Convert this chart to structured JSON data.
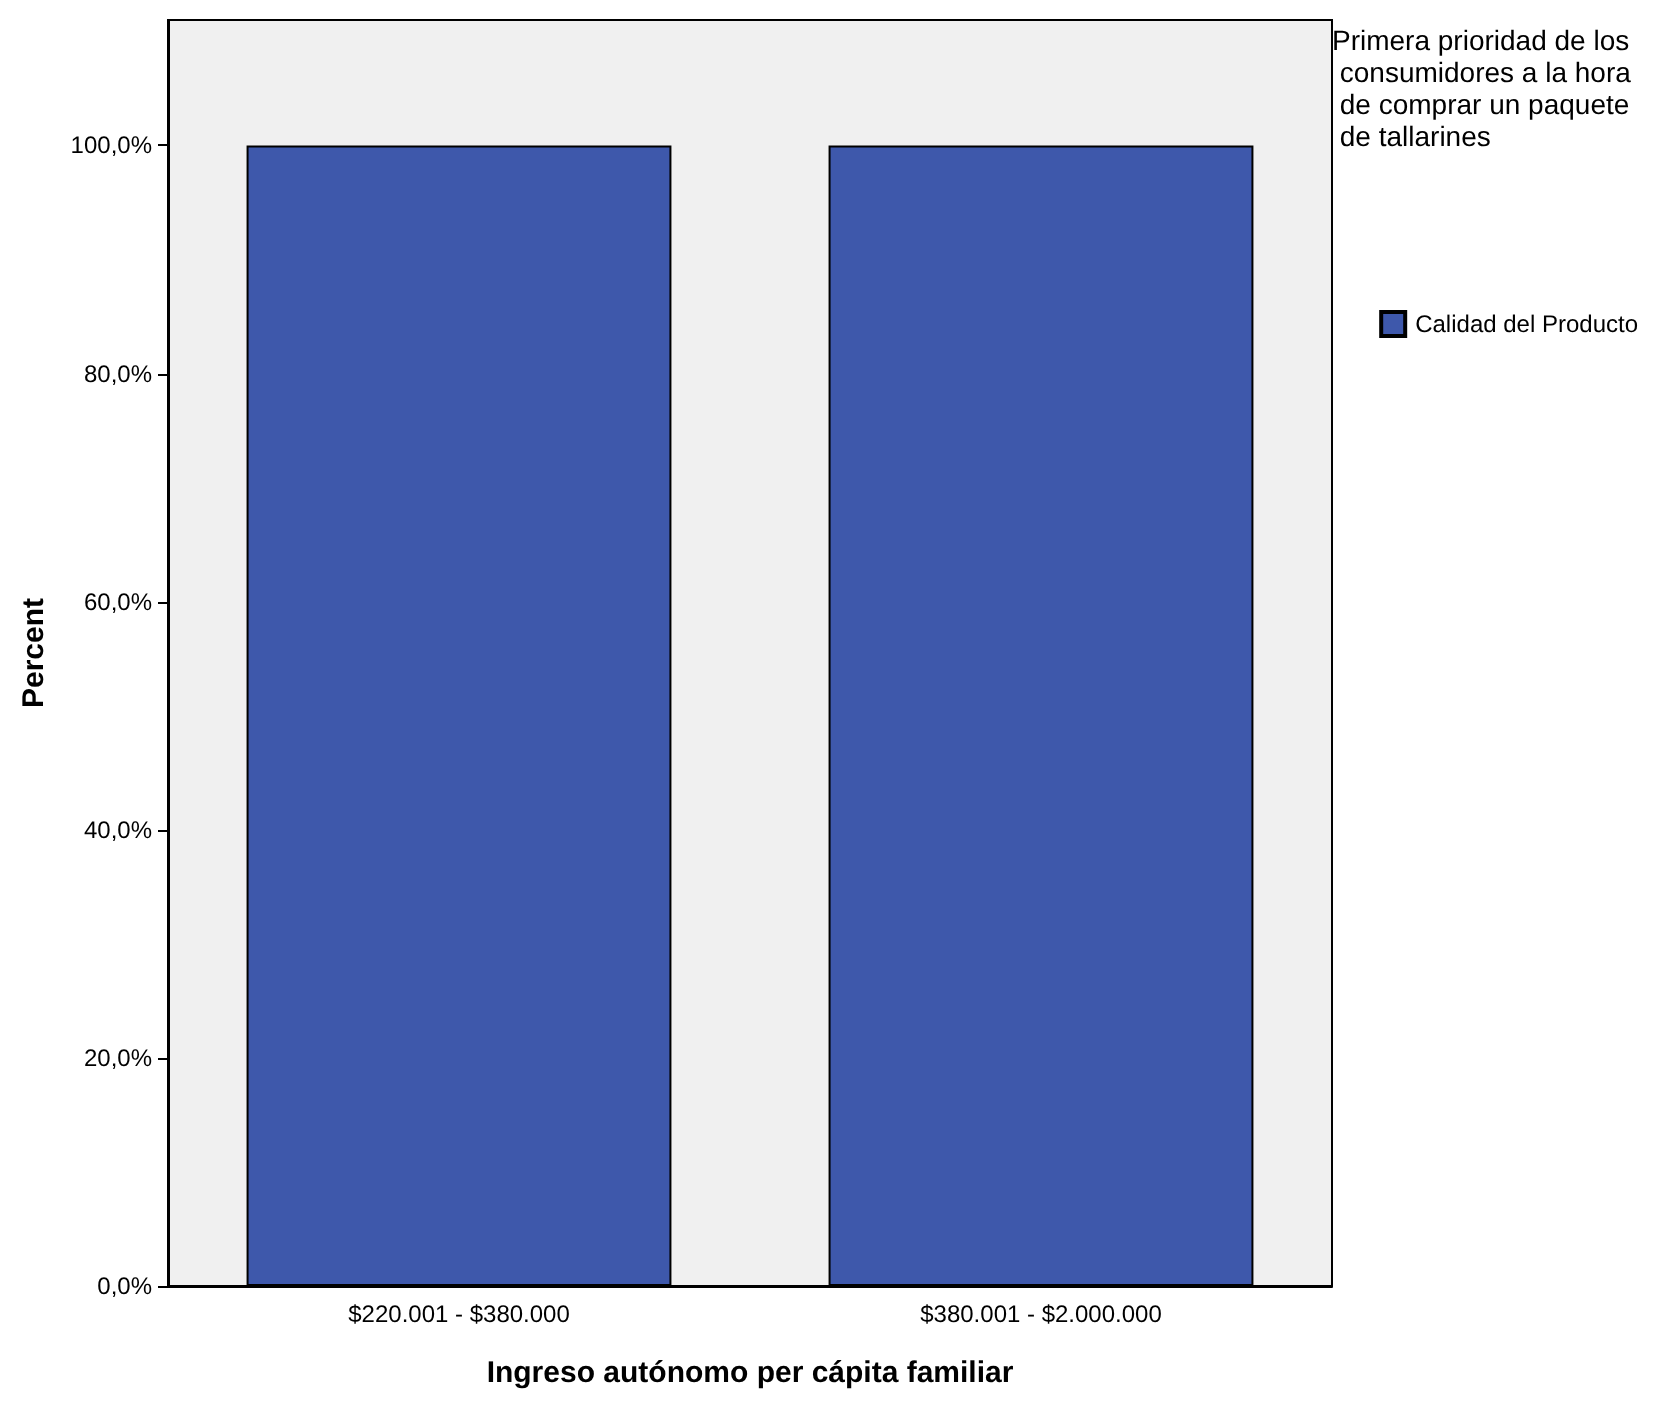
{
  "chart_data": {
    "type": "bar",
    "xlabel": "Ingreso autónomo per cápita familiar",
    "ylabel": "Percent",
    "legend_title": "Primera prioridad de los consumidores a la hora de comprar un paquete de tallarines",
    "categories": [
      "$220.001 - $380.000",
      "$380.001 - $2.000.000"
    ],
    "series": [
      {
        "name": "Calidad del Producto",
        "color": "#3e58ab",
        "values": [
          100,
          100
        ]
      }
    ],
    "ylim": [
      0,
      111
    ],
    "yticks": [
      {
        "value": 0,
        "label": "0,0%"
      },
      {
        "value": 20,
        "label": "20,0%"
      },
      {
        "value": 40,
        "label": "40,0%"
      },
      {
        "value": 60,
        "label": "60,0%"
      },
      {
        "value": 80,
        "label": "80,0%"
      },
      {
        "value": 100,
        "label": "100,0%"
      }
    ],
    "grid": false,
    "legend": "top right"
  }
}
